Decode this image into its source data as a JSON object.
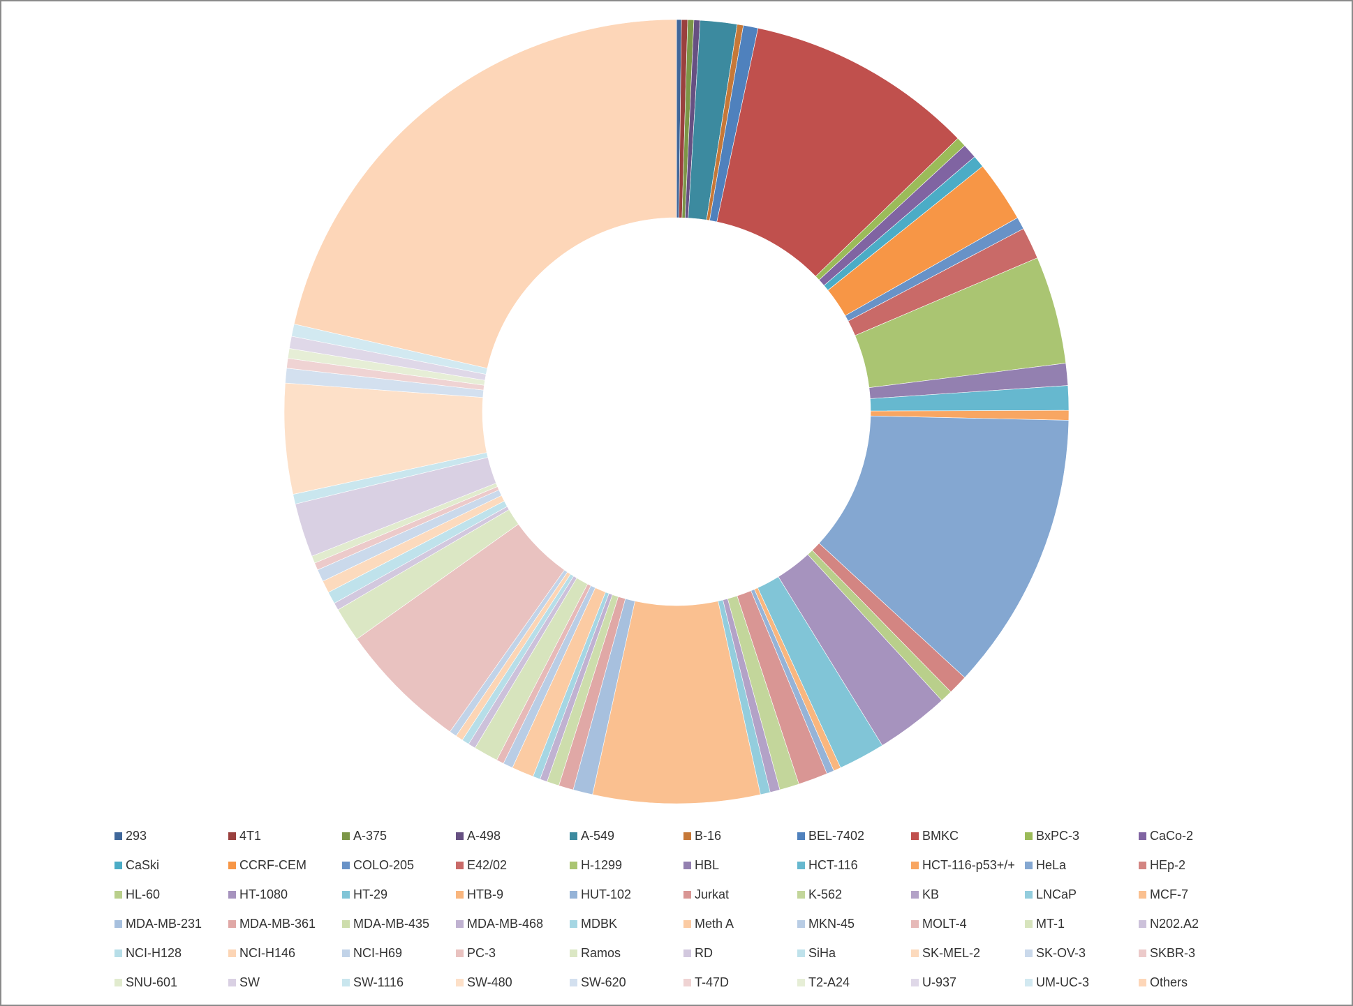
{
  "chart_data": {
    "type": "donut",
    "categories": [
      "293",
      "4T1",
      "A-375",
      "A-498",
      "A-549",
      "B-16",
      "BEL-7402",
      "BMKC",
      "BxPC-3",
      "CaCo-2",
      "CaSki",
      "CCRF-CEM",
      "COLO-205",
      "E42/02",
      "H-1299",
      "HBL",
      "HCT-116",
      "HCT-116-p53+/+",
      "HeLa",
      "HEp-2",
      "HL-60",
      "HT-1080",
      "HT-29",
      "HTB-9",
      "HUT-102",
      "Jurkat",
      "K-562",
      "KB",
      "LNCaP",
      "MCF-7",
      "MDA-MB-231",
      "MDA-MB-361",
      "MDA-MB-435",
      "MDA-MB-468",
      "MDBK",
      "Meth A",
      "MKN-45",
      "MOLT-4",
      "MT-1",
      "N202.A2",
      "NCI-H128",
      "NCI-H146",
      "NCI-H69",
      "PC-3",
      "Ramos",
      "RD",
      "SiHa",
      "SK-MEL-2",
      "SK-OV-3",
      "SKBR-3",
      "SNU-601",
      "SW",
      "SW-1116",
      "SW-480",
      "SW-620",
      "T-47D",
      "T2-A24",
      "U-937",
      "UM-UC-3",
      "Others"
    ],
    "values": [
      0.2,
      0.25,
      0.25,
      0.25,
      1.5,
      0.25,
      0.6,
      9.3,
      0.4,
      0.6,
      0.5,
      2.5,
      0.5,
      1.3,
      4.4,
      0.9,
      1.0,
      0.4,
      11.4,
      0.8,
      0.5,
      3.0,
      1.9,
      0.3,
      0.3,
      1.2,
      0.8,
      0.4,
      0.4,
      6.8,
      0.8,
      0.6,
      0.5,
      0.3,
      0.3,
      0.9,
      0.4,
      0.3,
      1.0,
      0.3,
      0.3,
      0.3,
      0.3,
      5.3,
      1.4,
      0.3,
      0.5,
      0.5,
      0.5,
      0.3,
      0.3,
      2.2,
      0.4,
      4.5,
      0.6,
      0.4,
      0.4,
      0.5,
      0.5,
      21.2
    ],
    "colors": [
      "#3f679a",
      "#9a403e",
      "#7c9647",
      "#665082",
      "#3c8a9f",
      "#c67838",
      "#4f81bd",
      "#c0504d",
      "#9bbb59",
      "#8064a2",
      "#4bacc6",
      "#f79646",
      "#6892c7",
      "#c96a68",
      "#aac572",
      "#9380b0",
      "#66b8cf",
      "#f8a662",
      "#84a7d1",
      "#d38582",
      "#b9cf8b",
      "#a693be",
      "#81c5d7",
      "#f9b67e",
      "#95b3d7",
      "#d99694",
      "#c3d69b",
      "#b3a2c7",
      "#93cddd",
      "#fac090",
      "#a7c0de",
      "#e0a8a6",
      "#cdddac",
      "#c0b2d1",
      "#a5d6e3",
      "#fbcba3",
      "#b9cde5",
      "#e6b9b8",
      "#d7e4bd",
      "#ccc1da",
      "#b7dee8",
      "#fcd5b5",
      "#c1d3e8",
      "#e9c2c0",
      "#dbe7c4",
      "#d2c8de",
      "#bfe2eb",
      "#fcdabd",
      "#cad9eb",
      "#eccaca",
      "#e1ebce",
      "#d9d0e3",
      "#c9e6ee",
      "#fde0c8",
      "#d3e0ef",
      "#efd3d3",
      "#e6eed6",
      "#dfd8e8",
      "#d2e9f1",
      "#fdd6b8"
    ],
    "legend": "bottom"
  }
}
